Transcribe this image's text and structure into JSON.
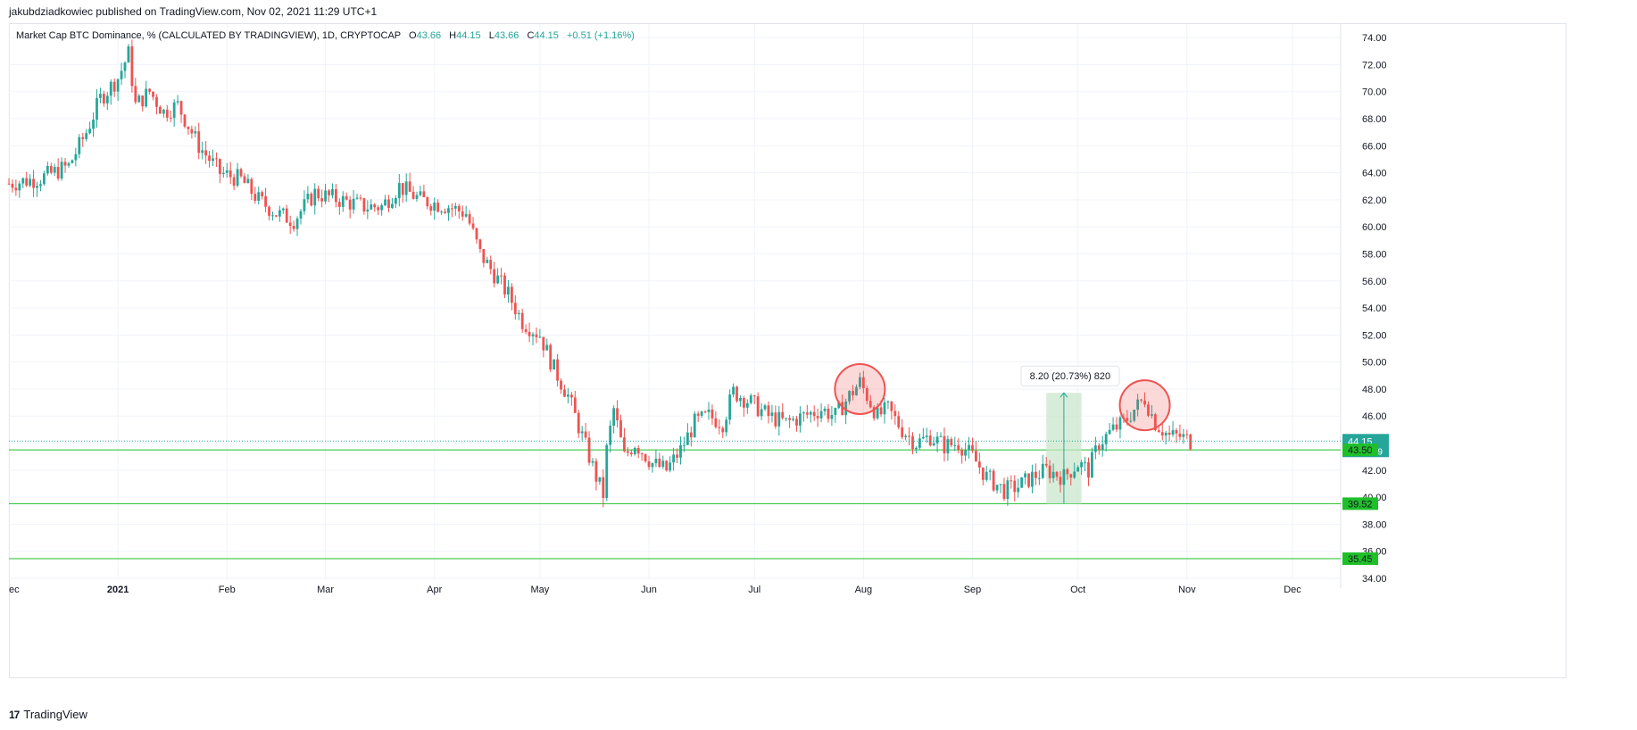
{
  "header": {
    "published_text": "jakubdziadkowiec published on TradingView.com, Nov 02, 2021 11:29 UTC+1"
  },
  "legend": {
    "symbol": "Market Cap BTC Dominance, % (CALCULATED BY TRADINGVIEW), 1D, CRYPTOCAP",
    "o_label": "O",
    "o_value": "43.66",
    "h_label": "H",
    "h_value": "44.15",
    "l_label": "L",
    "l_value": "43.66",
    "c_label": "C",
    "c_value": "44.15",
    "change": "+0.51 (+1.16%)"
  },
  "footer": {
    "brand": "TradingView",
    "logo_icon": "tradingview-logo-icon"
  },
  "colors": {
    "up": "#26a69a",
    "down": "#ef5350",
    "level": "#1fbf2a",
    "price_tag": "#26a69a",
    "measure_fill": "#c8e6c9"
  },
  "chart_data": {
    "type": "candlestick",
    "title": "Market Cap BTC Dominance, % (CALCULATED BY TRADINGVIEW), 1D, CRYPTOCAP",
    "y_range": [
      34.0,
      75.0
    ],
    "y_ticks": [
      "34.00",
      "36.00",
      "38.00",
      "40.00",
      "42.00",
      "44.00",
      "46.00",
      "48.00",
      "50.00",
      "52.00",
      "54.00",
      "56.00",
      "58.00",
      "60.00",
      "62.00",
      "64.00",
      "66.00",
      "68.00",
      "70.00",
      "72.00",
      "74.00"
    ],
    "x_ticks": [
      {
        "label": "ec",
        "date": "2020-12-01"
      },
      {
        "label": "2021",
        "date": "2021-01-01"
      },
      {
        "label": "Feb",
        "date": "2021-02-01"
      },
      {
        "label": "Mar",
        "date": "2021-03-01"
      },
      {
        "label": "Apr",
        "date": "2021-04-01"
      },
      {
        "label": "May",
        "date": "2021-05-01"
      },
      {
        "label": "Jun",
        "date": "2021-06-01"
      },
      {
        "label": "Jul",
        "date": "2021-07-01"
      },
      {
        "label": "Aug",
        "date": "2021-08-01"
      },
      {
        "label": "Sep",
        "date": "2021-09-01"
      },
      {
        "label": "Oct",
        "date": "2021-10-01"
      },
      {
        "label": "Nov",
        "date": "2021-11-01"
      },
      {
        "label": "Dec",
        "date": "2021-12-01"
      }
    ],
    "series_points": [
      [
        "2020-12-01",
        63.2
      ],
      [
        "2020-12-10",
        63.6
      ],
      [
        "2020-12-18",
        64.5
      ],
      [
        "2020-12-23",
        67.0
      ],
      [
        "2020-12-27",
        69.5
      ],
      [
        "2021-01-01",
        71.0
      ],
      [
        "2021-01-04",
        72.8
      ],
      [
        "2021-01-06",
        69.0
      ],
      [
        "2021-01-10",
        70.0
      ],
      [
        "2021-01-14",
        68.5
      ],
      [
        "2021-01-18",
        69.0
      ],
      [
        "2021-01-24",
        66.0
      ],
      [
        "2021-01-30",
        64.0
      ],
      [
        "2021-02-05",
        63.5
      ],
      [
        "2021-02-10",
        62.0
      ],
      [
        "2021-02-15",
        61.0
      ],
      [
        "2021-02-20",
        60.5
      ],
      [
        "2021-02-26",
        62.5
      ],
      [
        "2021-03-05",
        62.0
      ],
      [
        "2021-03-12",
        61.5
      ],
      [
        "2021-03-17",
        61.5
      ],
      [
        "2021-03-22",
        63.0
      ],
      [
        "2021-03-28",
        62.0
      ],
      [
        "2021-04-05",
        61.5
      ],
      [
        "2021-04-10",
        61.0
      ],
      [
        "2021-04-14",
        58.0
      ],
      [
        "2021-04-18",
        56.5
      ],
      [
        "2021-04-22",
        55.0
      ],
      [
        "2021-04-26",
        53.0
      ],
      [
        "2021-05-01",
        52.0
      ],
      [
        "2021-05-05",
        49.5
      ],
      [
        "2021-05-09",
        47.5
      ],
      [
        "2021-05-13",
        44.5
      ],
      [
        "2021-05-17",
        41.5
      ],
      [
        "2021-05-19",
        40.2
      ],
      [
        "2021-05-20",
        43.5
      ],
      [
        "2021-05-22",
        46.5
      ],
      [
        "2021-05-25",
        43.0
      ],
      [
        "2021-05-28",
        44.0
      ],
      [
        "2021-06-02",
        42.5
      ],
      [
        "2021-06-06",
        42.0
      ],
      [
        "2021-06-10",
        43.5
      ],
      [
        "2021-06-14",
        45.5
      ],
      [
        "2021-06-18",
        46.0
      ],
      [
        "2021-06-22",
        45.5
      ],
      [
        "2021-06-25",
        47.8
      ],
      [
        "2021-06-30",
        47.0
      ],
      [
        "2021-07-05",
        46.0
      ],
      [
        "2021-07-10",
        45.5
      ],
      [
        "2021-07-15",
        46.0
      ],
      [
        "2021-07-20",
        46.5
      ],
      [
        "2021-07-24",
        46.0
      ],
      [
        "2021-07-28",
        47.5
      ],
      [
        "2021-07-31",
        48.5
      ],
      [
        "2021-08-02",
        47.5
      ],
      [
        "2021-08-05",
        46.0
      ],
      [
        "2021-08-08",
        46.5
      ],
      [
        "2021-08-12",
        45.0
      ],
      [
        "2021-08-16",
        44.0
      ],
      [
        "2021-08-20",
        44.5
      ],
      [
        "2021-08-24",
        43.8
      ],
      [
        "2021-08-28",
        44.0
      ],
      [
        "2021-09-01",
        43.0
      ],
      [
        "2021-09-05",
        41.5
      ],
      [
        "2021-09-10",
        40.5
      ],
      [
        "2021-09-14",
        40.8
      ],
      [
        "2021-09-18",
        41.5
      ],
      [
        "2021-09-22",
        42.0
      ],
      [
        "2021-09-27",
        41.5
      ],
      [
        "2021-10-01",
        42.5
      ],
      [
        "2021-10-04",
        42.0
      ],
      [
        "2021-10-07",
        44.0
      ],
      [
        "2021-10-11",
        45.0
      ],
      [
        "2021-10-14",
        45.5
      ],
      [
        "2021-10-17",
        46.5
      ],
      [
        "2021-10-20",
        47.3
      ],
      [
        "2021-10-23",
        45.5
      ],
      [
        "2021-10-27",
        44.5
      ],
      [
        "2021-10-30",
        44.5
      ],
      [
        "2021-11-02",
        44.15
      ]
    ],
    "horizontal_levels": [
      {
        "label": "43.50",
        "value": 43.5
      },
      {
        "label": "39.52",
        "value": 39.52
      },
      {
        "label": "35.45",
        "value": 35.45
      }
    ],
    "last_price": {
      "value": 44.15,
      "label": "44.15",
      "countdown": "13:30:39"
    },
    "measure": {
      "label": "8.20 (20.73%) 820",
      "start_date": "2021-09-22",
      "end_date": "2021-10-02",
      "low": 39.52,
      "high": 47.72
    },
    "highlights": [
      {
        "date": "2021-07-31",
        "value": 48.0
      },
      {
        "date": "2021-10-20",
        "value": 46.8
      }
    ]
  }
}
